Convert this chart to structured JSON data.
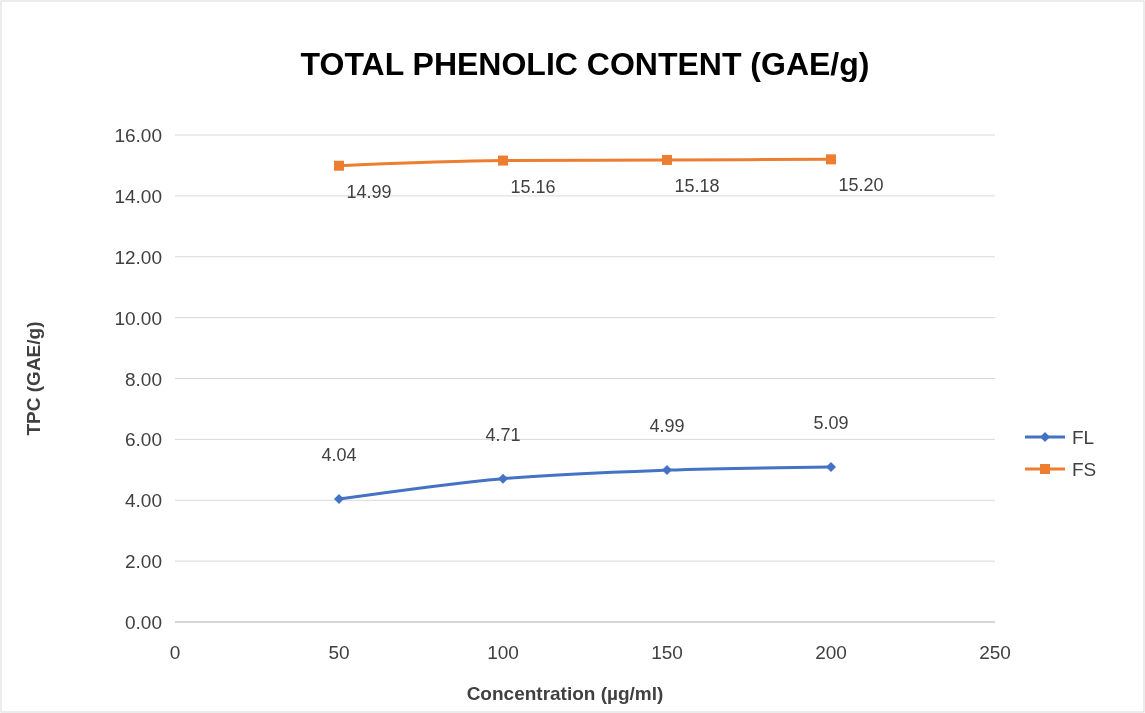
{
  "chart_data": {
    "type": "line",
    "title": "TOTAL PHENOLIC CONTENT (GAE/g)",
    "xlabel": "Concentration (µg/ml)",
    "ylabel": "TPC (GAE/g)",
    "x": [
      50,
      100,
      150,
      200
    ],
    "series": [
      {
        "name": "FL",
        "color": "#4472c4",
        "marker": "diamond",
        "values": [
          4.04,
          4.71,
          4.99,
          5.09
        ],
        "value_labels": [
          "4.04",
          "4.71",
          "4.99",
          "5.09"
        ]
      },
      {
        "name": "FS",
        "color": "#ed7d31",
        "marker": "square",
        "values": [
          14.99,
          15.16,
          15.18,
          15.2
        ],
        "value_labels": [
          "14.99",
          "15.16",
          "15.18",
          "15.20"
        ]
      }
    ],
    "xlim": [
      0,
      250
    ],
    "xticks": [
      0,
      50,
      100,
      150,
      200,
      250
    ],
    "ylim": [
      0,
      16
    ],
    "yticks": [
      {
        "value": 0,
        "label": "0.00"
      },
      {
        "value": 2,
        "label": "2.00"
      },
      {
        "value": 4,
        "label": "4.00"
      },
      {
        "value": 6,
        "label": "6.00"
      },
      {
        "value": 8,
        "label": "8.00"
      },
      {
        "value": 10,
        "label": "10.00"
      },
      {
        "value": 12,
        "label": "12.00"
      },
      {
        "value": 14,
        "label": "14.00"
      },
      {
        "value": 16,
        "label": "16.00"
      }
    ],
    "grid": "y",
    "legend": "right",
    "line_style": "solid"
  }
}
